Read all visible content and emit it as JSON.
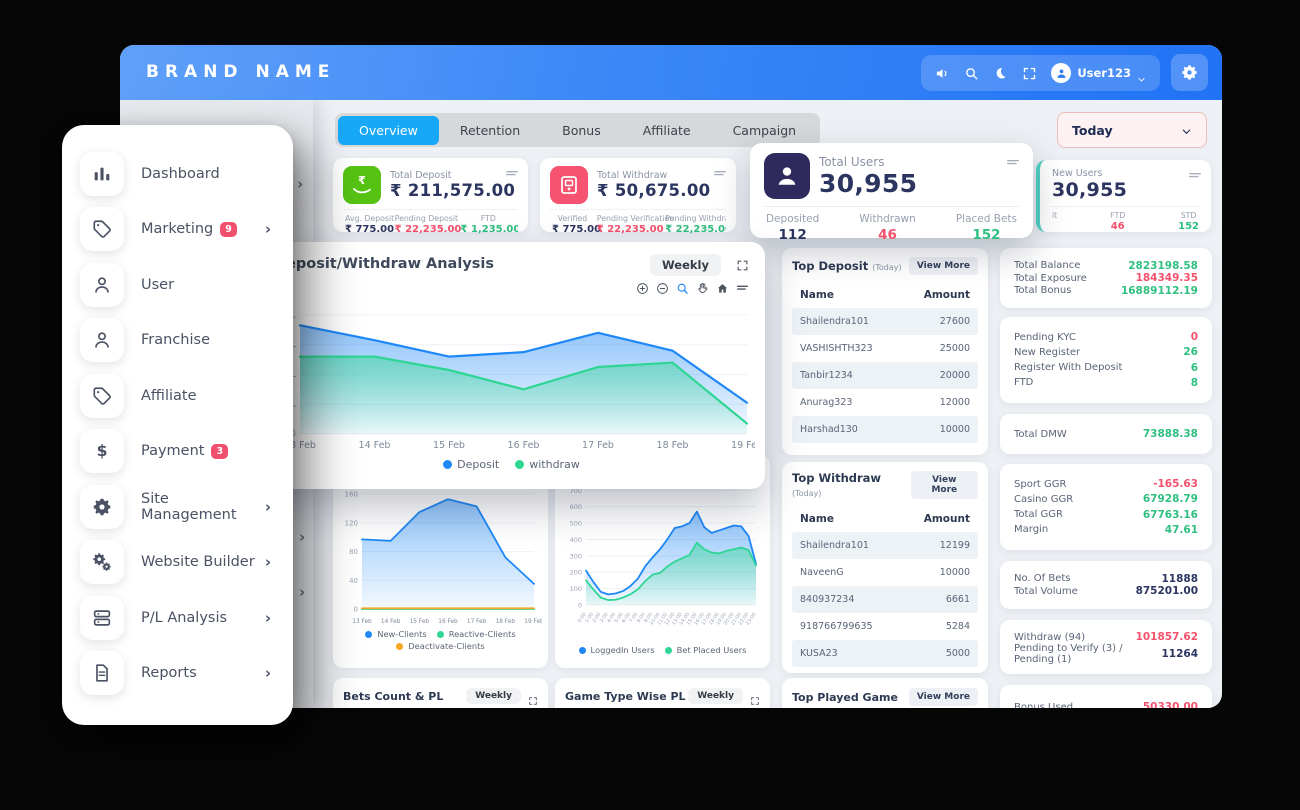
{
  "header": {
    "brand": "BRAND NAME",
    "user": "User123",
    "icons": [
      "volume-icon",
      "search-icon",
      "moon-icon",
      "fullscreen-icon"
    ]
  },
  "tabs": {
    "items": [
      "Overview",
      "Retention",
      "Bonus",
      "Affiliate",
      "Campaign"
    ],
    "active": "Overview",
    "range_selector": "Today"
  },
  "sidebar": {
    "items": [
      {
        "label": "Dashboard",
        "icon": "bar-chart-icon"
      },
      {
        "label": "Marketing",
        "icon": "tag-icon",
        "badge": "9",
        "chevron": true
      },
      {
        "label": "User",
        "icon": "user-icon"
      },
      {
        "label": "Franchise",
        "icon": "user-icon"
      },
      {
        "label": "Affiliate",
        "icon": "tag-icon"
      },
      {
        "label": "Payment",
        "icon": "dollar-icon",
        "badge": "3"
      },
      {
        "label": "Site Management",
        "icon": "gear-icon",
        "chevron": true
      },
      {
        "label": "Website Builder",
        "icon": "gears-icon",
        "chevron": true
      },
      {
        "label": "P/L Analysis",
        "icon": "server-icon",
        "chevron": true
      },
      {
        "label": "Reports",
        "icon": "document-icon",
        "chevron": true
      }
    ]
  },
  "stat_cards": {
    "deposit": {
      "title": "Total Deposit",
      "value": "₹ 211,575.00",
      "subs": [
        {
          "label": "Avg. Deposit",
          "value": "₹ 775.00",
          "tone": "dark"
        },
        {
          "label": "Pending Deposit",
          "value": "₹ 22,235.00",
          "tone": "red"
        },
        {
          "label": "FTD",
          "value": "₹ 1,235.00",
          "tone": "green"
        }
      ]
    },
    "withdraw": {
      "title": "Total Withdraw",
      "value": "₹ 50,675.00",
      "subs": [
        {
          "label": "Verified",
          "value": "₹ 775.00",
          "tone": "dark"
        },
        {
          "label": "Pending Verification",
          "value": "₹ 22,235.00",
          "tone": "red"
        },
        {
          "label": "Pending Withdraw",
          "value": "₹ 22,235.00",
          "tone": "green"
        }
      ]
    },
    "total_users": {
      "title": "Total Users",
      "value": "30,955",
      "subs": [
        {
          "label": "Deposited",
          "value": "112",
          "tone": "dark"
        },
        {
          "label": "Withdrawn",
          "value": "46",
          "tone": "red"
        },
        {
          "label": "Placed Bets",
          "value": "152",
          "tone": "green"
        }
      ]
    },
    "new_users": {
      "title": "New Users",
      "value": "30,955",
      "subs": [
        {
          "label": "it",
          "value": "",
          "tone": "dark"
        },
        {
          "label": "FTD",
          "value": "46",
          "tone": "red"
        },
        {
          "label": "STD",
          "value": "152",
          "tone": "green"
        }
      ]
    }
  },
  "dw_panel": {
    "title": "Deposit/Withdraw Analysis",
    "range": "Weekly"
  },
  "toolbar_icons": [
    "zoom-in-icon",
    "zoom-out-icon",
    "zoom-select-icon",
    "pan-icon",
    "home-icon",
    "menu-icon"
  ],
  "tables": {
    "top_deposit": {
      "title": "Top Deposit",
      "subtitle": "(Today)",
      "action": "View More",
      "headers": [
        "Name",
        "Amount"
      ],
      "rows": [
        [
          "Shailendra101",
          "27600"
        ],
        [
          "VASHISHTH323",
          "25000"
        ],
        [
          "Tanbir1234",
          "20000"
        ],
        [
          "Anurag323",
          "12000"
        ],
        [
          "Harshad130",
          "10000"
        ]
      ]
    },
    "top_withdraw": {
      "title": "Top Withdraw",
      "subtitle": "(Today)",
      "action": "View More",
      "headers": [
        "Name",
        "Amount"
      ],
      "rows": [
        [
          "Shailendra101",
          "12199"
        ],
        [
          "NaveenG",
          "10000"
        ],
        [
          "840937234",
          "6661"
        ],
        [
          "918766799635",
          "5284"
        ],
        [
          "KUSA23",
          "5000"
        ]
      ]
    }
  },
  "right_stats": {
    "groups": [
      {
        "rows": [
          {
            "label": "Total Balance",
            "value": "2823198.58",
            "tone": "green"
          },
          {
            "label": "Total Exposure",
            "value": "184349.35",
            "tone": "red"
          },
          {
            "label": "Total Bonus",
            "value": "16889112.19",
            "tone": "green"
          }
        ]
      },
      {
        "rows": [
          {
            "label": "Pending KYC",
            "value": "0",
            "tone": "red"
          },
          {
            "label": "New Register",
            "value": "26",
            "tone": "green"
          },
          {
            "label": "Register With Deposit",
            "value": "6",
            "tone": "green"
          },
          {
            "label": "FTD",
            "value": "8",
            "tone": "green"
          }
        ]
      },
      {
        "rows": [
          {
            "label": "Total DMW",
            "value": "73888.38",
            "tone": "green"
          }
        ]
      },
      {
        "rows": [
          {
            "label": "Sport GGR",
            "value": "-165.63",
            "tone": "red"
          },
          {
            "label": "Casino GGR",
            "value": "67928.79",
            "tone": "green"
          },
          {
            "label": "Total GGR",
            "value": "67763.16",
            "tone": "green"
          },
          {
            "label": "Margin",
            "value": "47.61",
            "tone": "green"
          }
        ]
      },
      {
        "rows": [
          {
            "label": "No. Of Bets",
            "value": "11888",
            "tone": "dark"
          },
          {
            "label": "Total Volume",
            "value": "875201.00",
            "tone": "dark"
          }
        ]
      },
      {
        "rows": [
          {
            "label": "Withdraw (94)",
            "value": "101857.62",
            "tone": "red"
          },
          {
            "label": "Pending to Verify (3) / Pending (1)",
            "value": "11264",
            "tone": "dark"
          }
        ]
      },
      {
        "rows": [
          {
            "label": "Bonus Used",
            "value": "50330.00",
            "tone": "red"
          }
        ]
      }
    ]
  },
  "bottom_cards": [
    {
      "title": "Bets Count & PL",
      "range": "Weekly"
    },
    {
      "title": "Game Type Wise PL",
      "range": "Weekly"
    },
    {
      "title": "Top Played Game",
      "action": "View More"
    }
  ],
  "chart_data": [
    {
      "type": "area",
      "title": "Deposit/Withdraw Analysis",
      "x": [
        "13 Feb",
        "14 Feb",
        "15 Feb",
        "16 Feb",
        "17 Feb",
        "18 Feb",
        "19 Feb"
      ],
      "ylim": [
        0,
        8.6
      ],
      "ytick_vals": [
        0,
        2,
        4,
        6,
        8
      ],
      "ytick_labels": [
        "0",
        "2L",
        "4L",
        "6L",
        "8L"
      ],
      "padL": 32,
      "tickFont": 9,
      "xFont": 9.5,
      "lw": 2.2,
      "legend_position": "bottom",
      "grid": true,
      "series": [
        {
          "name": "Deposit",
          "color": "#1e88f7",
          "values": [
            7.3,
            6.3,
            5.2,
            5.5,
            6.8,
            5.6,
            2.1
          ]
        },
        {
          "name": "withdraw",
          "color": "#2fd693",
          "values": [
            5.2,
            5.2,
            4.3,
            3.0,
            4.5,
            4.8,
            0.7
          ]
        }
      ]
    },
    {
      "type": "area",
      "title": "",
      "x": [
        "13 Feb",
        "14 Feb",
        "15 Feb",
        "16 Feb",
        "17 Feb",
        "18 Feb",
        "19 Feb"
      ],
      "ylim": [
        0,
        170
      ],
      "ytick_vals": [
        0,
        40,
        80,
        120,
        160
      ],
      "ytick_labels": [
        "0",
        "40",
        "80",
        "120",
        "160"
      ],
      "padL": 24,
      "tickFont": 7,
      "xFont": 5.8,
      "lw": 1.8,
      "legend_position": "bottom",
      "grid": true,
      "series": [
        {
          "name": "New-Clients",
          "color": "#1e88f7",
          "values": [
            97,
            95,
            135,
            153,
            143,
            72,
            35
          ]
        },
        {
          "name": "Reactive-Clients",
          "color": "#2fd693",
          "values": [
            0,
            0,
            0,
            0,
            0,
            0,
            0
          ]
        },
        {
          "name": "Deactivate-Clients",
          "color": "#f5a623",
          "values": [
            1,
            1,
            1,
            1,
            1,
            1,
            1
          ]
        }
      ]
    },
    {
      "type": "area",
      "title": "",
      "x": [
        "0:00",
        "1:00",
        "2:00",
        "3:00",
        "4:00",
        "5:00",
        "6:00",
        "7:00",
        "8:00",
        "9:00",
        "10:00",
        "11:00",
        "12:00",
        "13:00",
        "14:00",
        "15:00",
        "16:00",
        "17:00",
        "18:00",
        "19:00",
        "20:00",
        "21:00",
        "22:00",
        "23:00"
      ],
      "ylim": [
        0,
        720
      ],
      "ytick_vals": [
        0,
        100,
        200,
        300,
        400,
        500,
        600,
        700
      ],
      "ytick_labels": [
        "0",
        "100",
        "200",
        "300",
        "400",
        "500",
        "600",
        "700"
      ],
      "padL": 26,
      "tickFont": 6.5,
      "lw": 1.8,
      "rotate_x": true,
      "legend_position": "bottom",
      "grid": true,
      "series": [
        {
          "name": "LoggedIn Users",
          "color": "#1e88f7",
          "values": [
            210,
            140,
            80,
            65,
            70,
            85,
            115,
            160,
            235,
            290,
            340,
            400,
            470,
            480,
            500,
            570,
            475,
            440,
            455,
            470,
            485,
            480,
            420,
            250
          ]
        },
        {
          "name": "Bet Placed Users",
          "color": "#2fd693",
          "values": [
            150,
            95,
            45,
            30,
            32,
            45,
            65,
            95,
            145,
            185,
            195,
            235,
            265,
            285,
            305,
            380,
            340,
            320,
            315,
            330,
            340,
            350,
            335,
            240
          ]
        }
      ]
    }
  ]
}
